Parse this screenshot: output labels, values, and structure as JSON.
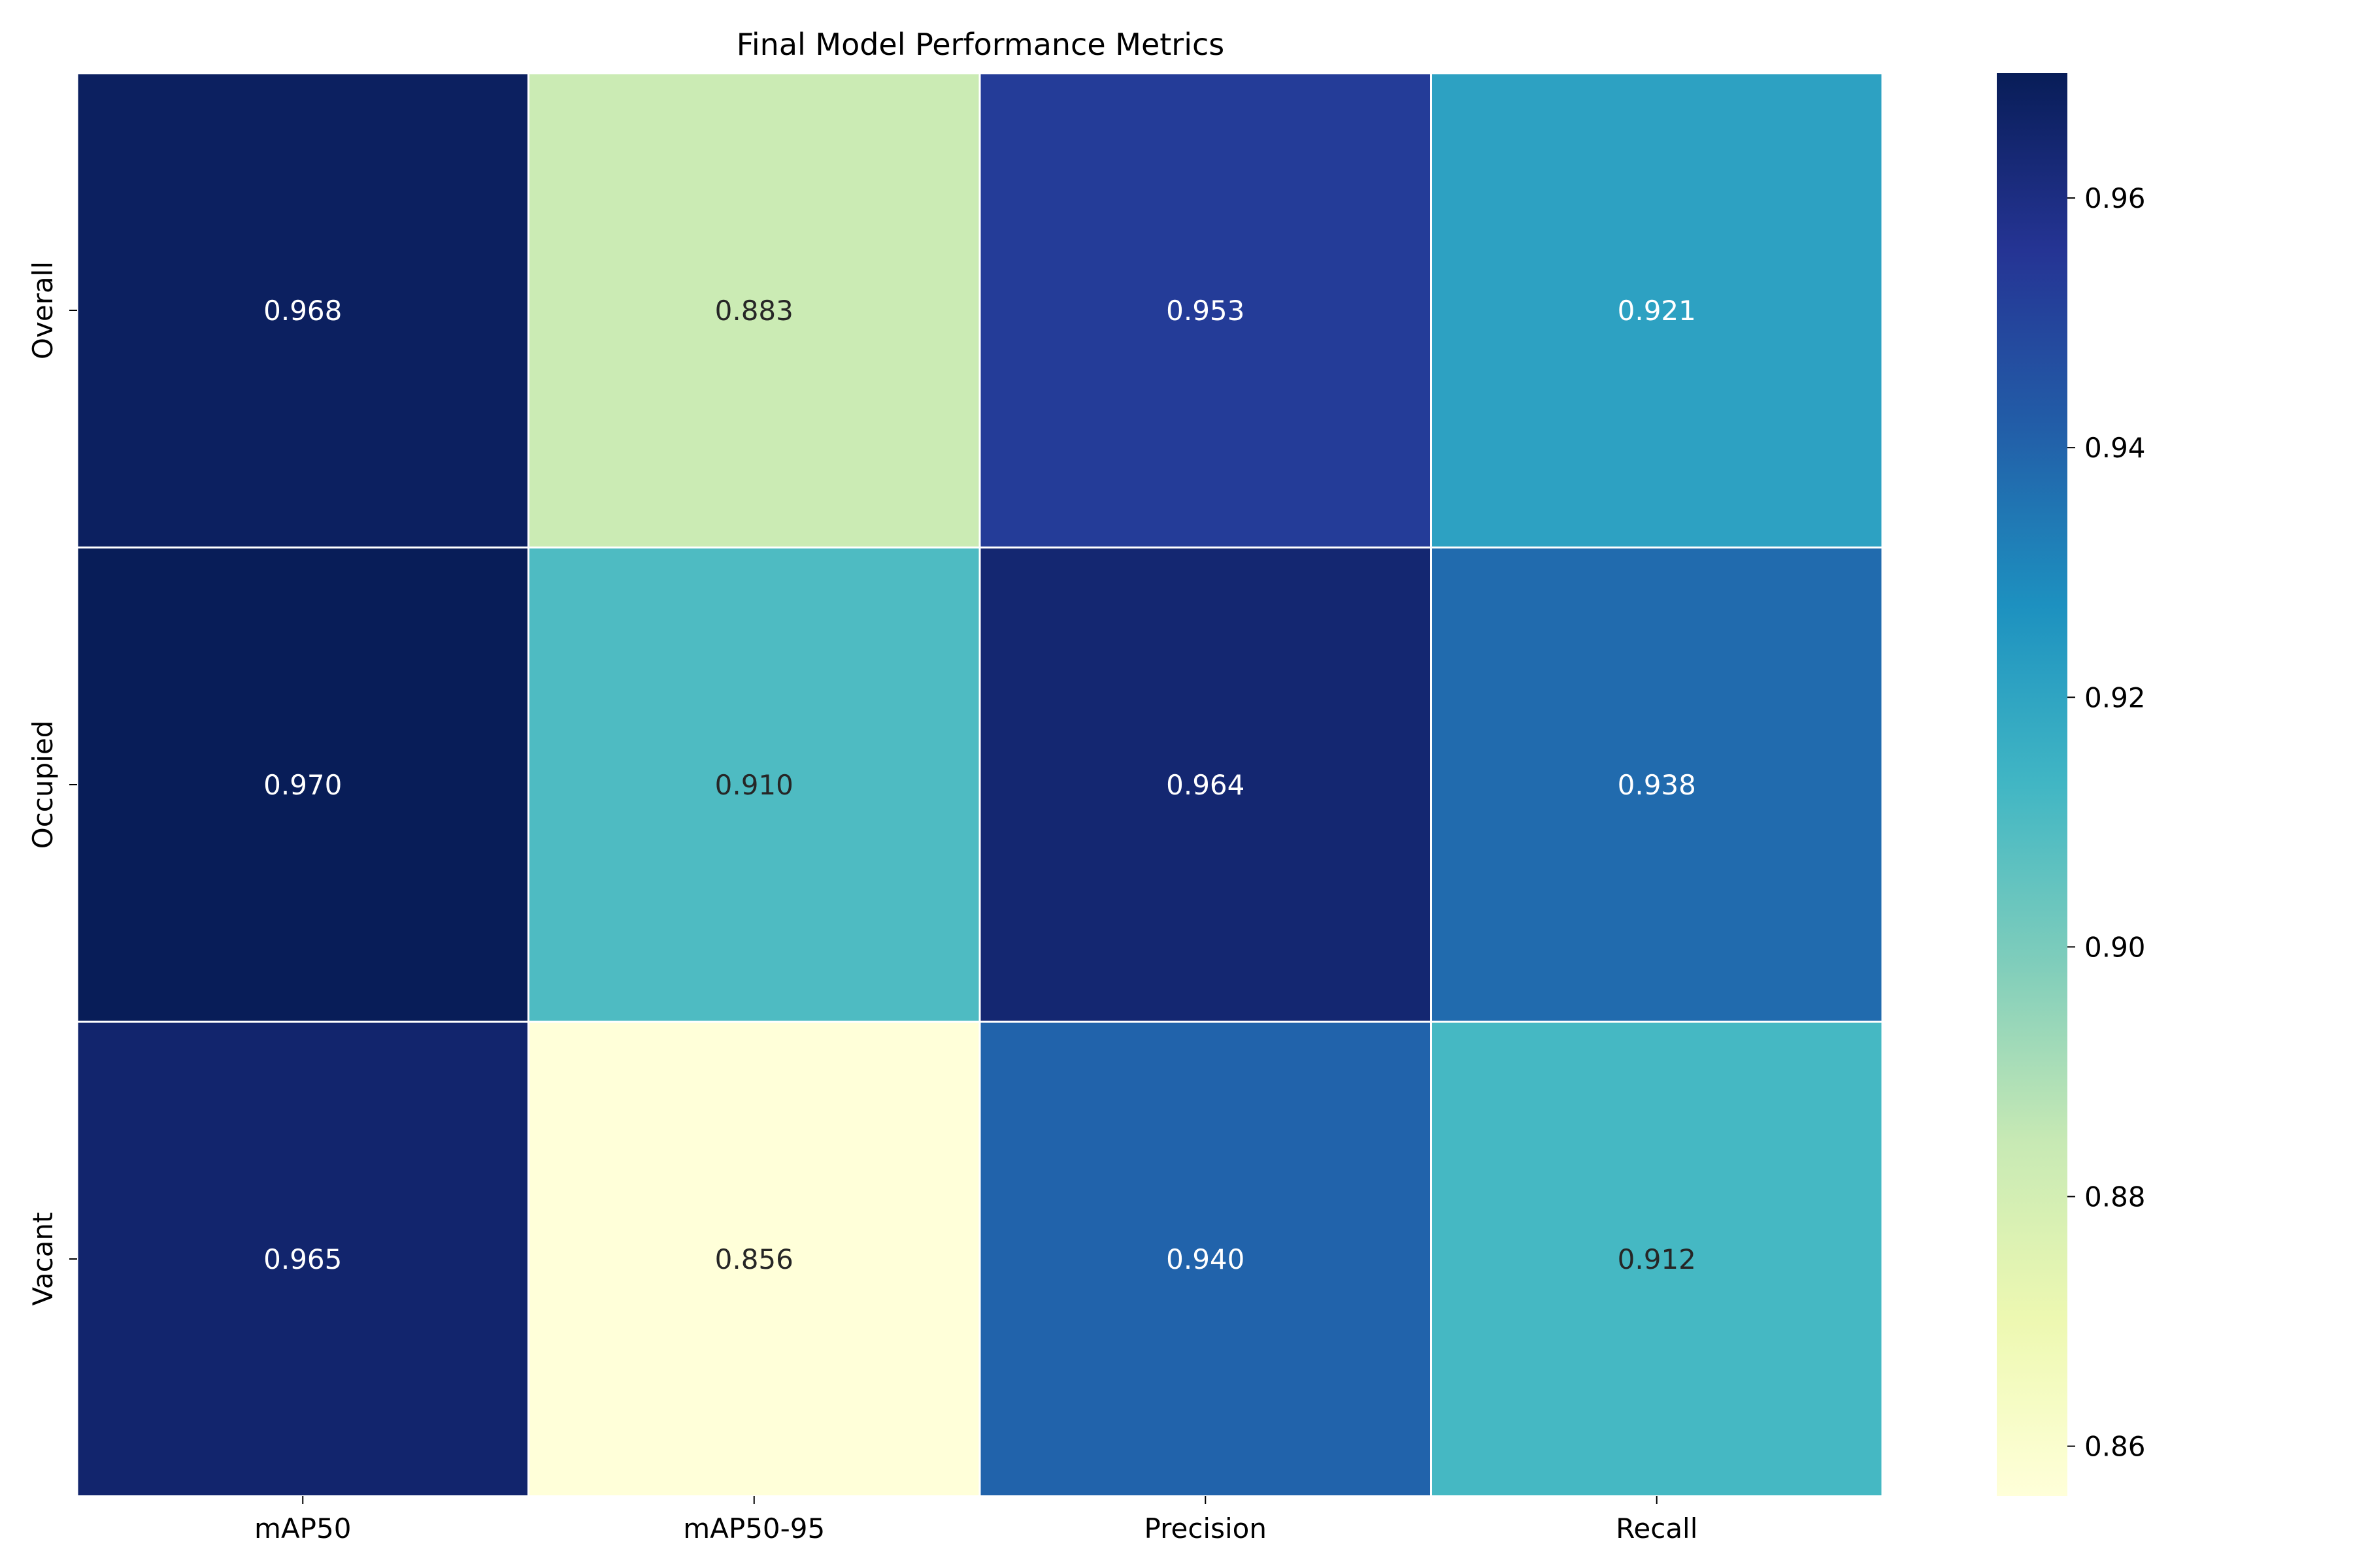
{
  "chart_data": {
    "type": "heatmap",
    "title": "Final Model Performance Metrics",
    "xlabel": "",
    "ylabel": "",
    "columns": [
      "mAP50",
      "mAP50-95",
      "Precision",
      "Recall"
    ],
    "rows": [
      "Overall",
      "Occupied",
      "Vacant"
    ],
    "values": [
      [
        0.968,
        0.883,
        0.953,
        0.921
      ],
      [
        0.97,
        0.91,
        0.964,
        0.938
      ],
      [
        0.965,
        0.856,
        0.94,
        0.912
      ]
    ],
    "annotations": [
      [
        "0.968",
        "0.883",
        "0.953",
        "0.921"
      ],
      [
        "0.970",
        "0.910",
        "0.964",
        "0.938"
      ],
      [
        "0.965",
        "0.856",
        "0.940",
        "0.912"
      ]
    ],
    "colormap": "YlGnBu",
    "vmin": 0.856,
    "vmax": 0.97,
    "colorbar_ticks": [
      0.86,
      0.88,
      0.9,
      0.92,
      0.94,
      0.96
    ],
    "colorbar_tick_labels": [
      "0.86",
      "0.88",
      "0.90",
      "0.92",
      "0.94",
      "0.96"
    ],
    "cell_border_color": "#ffffff",
    "grid": false,
    "legend": "colorbar-right"
  }
}
